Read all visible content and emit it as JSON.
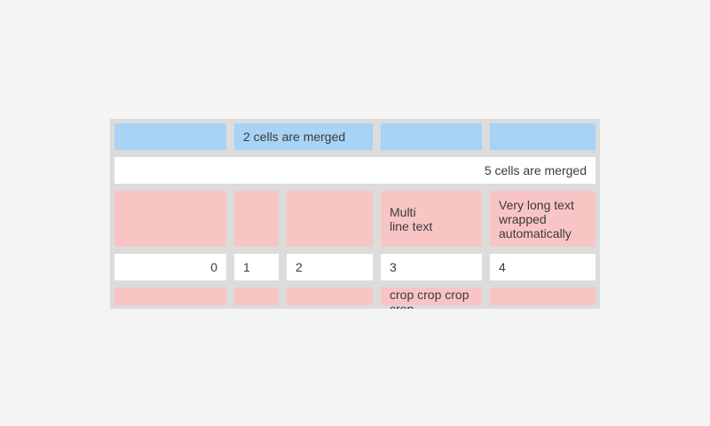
{
  "table": {
    "colors": {
      "page_bg": "#f4f4f4",
      "grid_gray": "#dcdcdc",
      "header_blue": "#a8d3f4",
      "highlight_pink": "#f9c5c4",
      "cell_white": "#ffffff",
      "text": "#3b3b3b"
    },
    "row1": {
      "merged_label": "2 cells are merged"
    },
    "row2": {
      "merged_label": "5 cells are merged"
    },
    "row3": {
      "multiline_label": "Multi\nline text",
      "wrapped_label": "Very long text wrapped automatically"
    },
    "row4": {
      "values": [
        "0",
        "1",
        "2",
        "3",
        "4"
      ]
    },
    "row5": {
      "cropped_label": "crop crop crop crop"
    }
  }
}
